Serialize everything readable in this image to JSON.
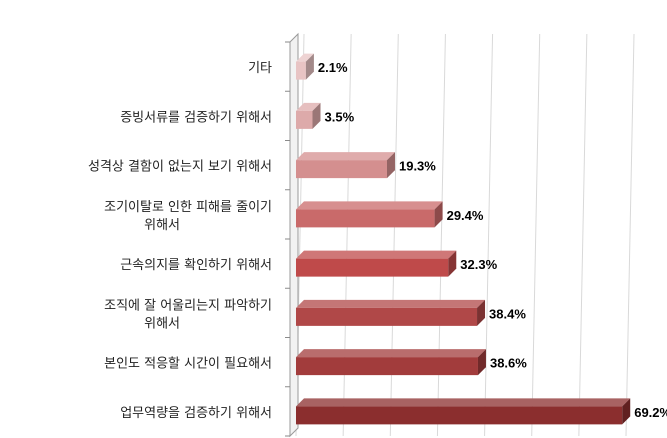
{
  "chart_data": {
    "type": "bar",
    "orientation": "horizontal",
    "style": "3d",
    "categories": [
      [
        "기타"
      ],
      [
        "증빙서류를 검증하기 위해서"
      ],
      [
        "성격상 결함이 없는지 보기 위해서"
      ],
      [
        "조기이탈로 인한 피해를 줄이기",
        "위해서"
      ],
      [
        "근속의지를 확인하기 위해서"
      ],
      [
        "조직에 잘 어울리는지 파악하기",
        "위해서"
      ],
      [
        "본인도 적응할 시간이 필요해서"
      ],
      [
        "업무역량을 검증하기 위해서"
      ]
    ],
    "values": [
      2.1,
      3.5,
      19.3,
      29.4,
      32.3,
      38.4,
      38.6,
      69.2
    ],
    "value_labels": [
      "2.1%",
      "3.5%",
      "19.3%",
      "29.4%",
      "32.3%",
      "38.4%",
      "38.6%",
      "69.2%"
    ],
    "colors": [
      "#e8c4c4",
      "#ddaaaa",
      "#d48f8f",
      "#c96a6a",
      "#bf4a4a",
      "#b04848",
      "#a23c3c",
      "#8b2e2e"
    ],
    "xlim": [
      0,
      70
    ],
    "grid": true
  }
}
